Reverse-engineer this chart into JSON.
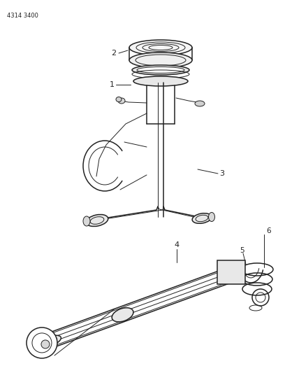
{
  "ref_code": "4314 3400",
  "background_color": "#ffffff",
  "line_color": "#222222",
  "text_color": "#222222",
  "fig_width": 4.08,
  "fig_height": 5.33,
  "dpi": 100
}
